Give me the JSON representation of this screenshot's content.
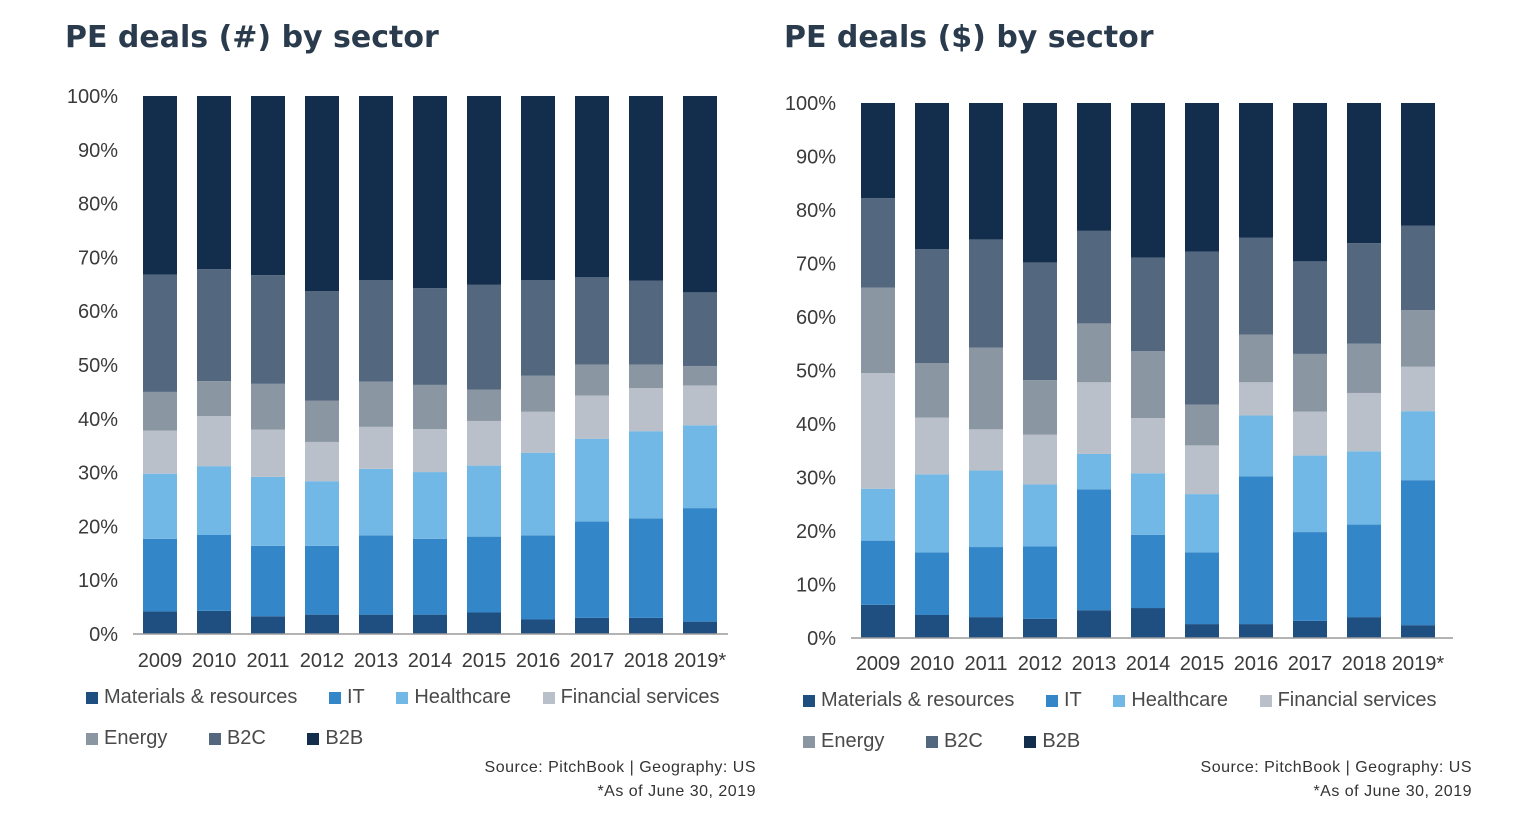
{
  "colors": {
    "Materials & resources": "#1f4e80",
    "IT": "#3386c8",
    "Healthcare": "#72b8e6",
    "Financial services": "#b9c0c9",
    "Energy": "#8b96a3",
    "B2C": "#53677e",
    "B2B": "#132d4d",
    "axis": "#9a9a9a",
    "title": "#2a3b4d"
  },
  "chart_data": [
    {
      "type": "bar",
      "stacked": true,
      "title": "PE deals (#) by sector",
      "categories": [
        "2009",
        "2010",
        "2011",
        "2012",
        "2013",
        "2014",
        "2015",
        "2016",
        "2017",
        "2018",
        "2019*"
      ],
      "y_ticks": [
        "0%",
        "10%",
        "20%",
        "30%",
        "40%",
        "50%",
        "60%",
        "70%",
        "80%",
        "90%",
        "100%"
      ],
      "ylim": [
        0,
        100
      ],
      "grid": false,
      "legend_position": "bottom",
      "series": [
        {
          "name": "Materials & resources",
          "values": [
            4.2,
            4.3,
            3.3,
            3.6,
            3.6,
            3.6,
            4.0,
            2.7,
            3.0,
            3.0,
            2.3
          ]
        },
        {
          "name": "IT",
          "values": [
            13.5,
            14.1,
            13.1,
            12.8,
            14.7,
            14.1,
            14.1,
            15.6,
            17.9,
            18.5,
            21.1
          ]
        },
        {
          "name": "Healthcare",
          "values": [
            12.1,
            12.8,
            12.8,
            12.0,
            12.4,
            12.4,
            13.2,
            15.4,
            15.4,
            16.2,
            15.4
          ]
        },
        {
          "name": "Financial services",
          "values": [
            8.0,
            9.3,
            8.8,
            7.3,
            7.8,
            8.0,
            8.3,
            7.6,
            8.0,
            8.0,
            7.4
          ]
        },
        {
          "name": "Energy",
          "values": [
            7.2,
            6.5,
            8.5,
            7.7,
            8.4,
            8.2,
            5.8,
            6.7,
            5.8,
            4.4,
            3.6
          ]
        },
        {
          "name": "B2C",
          "values": [
            21.8,
            20.8,
            20.2,
            20.3,
            18.9,
            18.0,
            19.5,
            17.8,
            16.2,
            15.6,
            13.7
          ]
        },
        {
          "name": "B2B",
          "values": [
            33.2,
            32.2,
            33.3,
            36.3,
            34.2,
            35.7,
            35.1,
            34.2,
            33.7,
            34.3,
            36.5
          ]
        }
      ]
    },
    {
      "type": "bar",
      "stacked": true,
      "title": "PE deals ($) by sector",
      "categories": [
        "2009",
        "2010",
        "2011",
        "2012",
        "2013",
        "2014",
        "2015",
        "2016",
        "2017",
        "2018",
        "2019*"
      ],
      "y_ticks": [
        "0%",
        "10%",
        "20%",
        "30%",
        "40%",
        "50%",
        "60%",
        "70%",
        "80%",
        "90%",
        "100%"
      ],
      "ylim": [
        0,
        100
      ],
      "grid": false,
      "legend_position": "bottom",
      "series": [
        {
          "name": "Materials & resources",
          "values": [
            6.2,
            4.3,
            3.9,
            3.6,
            5.2,
            5.6,
            2.6,
            2.6,
            3.2,
            3.9,
            2.4
          ]
        },
        {
          "name": "IT",
          "values": [
            12.0,
            11.7,
            13.1,
            13.5,
            22.6,
            13.7,
            13.4,
            27.6,
            16.6,
            17.3,
            27.1
          ]
        },
        {
          "name": "Healthcare",
          "values": [
            9.7,
            14.6,
            14.3,
            11.6,
            6.6,
            11.5,
            10.9,
            11.4,
            14.3,
            13.7,
            12.9
          ]
        },
        {
          "name": "Financial services",
          "values": [
            21.6,
            10.6,
            7.7,
            9.3,
            13.4,
            10.3,
            9.1,
            6.2,
            8.2,
            10.9,
            8.3
          ]
        },
        {
          "name": "Energy",
          "values": [
            16.0,
            10.2,
            15.3,
            10.2,
            11.0,
            12.5,
            7.6,
            8.9,
            10.8,
            9.2,
            10.6
          ]
        },
        {
          "name": "B2C",
          "values": [
            16.7,
            21.3,
            20.2,
            22.0,
            17.3,
            17.5,
            28.6,
            18.1,
            17.3,
            18.8,
            15.8
          ]
        },
        {
          "name": "B2B",
          "values": [
            17.8,
            27.3,
            25.5,
            29.8,
            23.9,
            28.9,
            27.8,
            25.2,
            29.6,
            26.2,
            22.9
          ]
        }
      ]
    }
  ],
  "legend": {
    "row1": [
      "Materials & resources",
      "IT",
      "Healthcare",
      "Financial services"
    ],
    "row2": [
      "Energy",
      "B2C",
      "B2B"
    ]
  },
  "footer": {
    "source": "Source: PitchBook | Geography: US",
    "note": "*As of June 30, 2019"
  }
}
